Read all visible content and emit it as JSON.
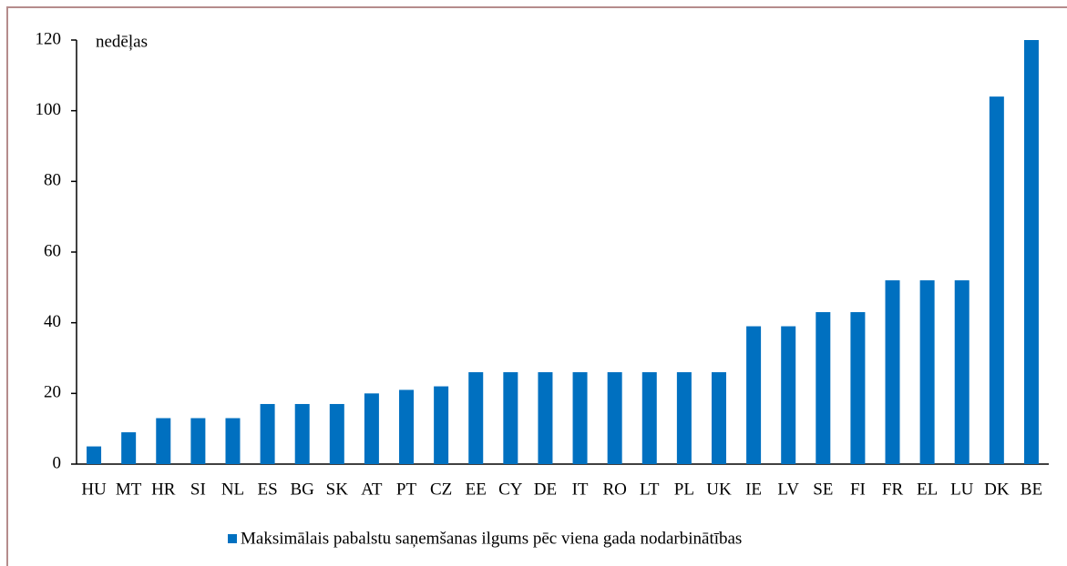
{
  "chart_data": {
    "type": "bar",
    "y_label": "nedēļas",
    "categories": [
      "HU",
      "MT",
      "HR",
      "SI",
      "NL",
      "ES",
      "BG",
      "SK",
      "AT",
      "PT",
      "CZ",
      "EE",
      "CY",
      "DE",
      "IT",
      "RO",
      "LT",
      "PL",
      "UK",
      "IE",
      "LV",
      "SE",
      "FI",
      "FR",
      "EL",
      "LU",
      "DK",
      "BE"
    ],
    "series": [
      {
        "name": "Maksimālais pabalstu saņemšanas ilgums pēc viena gada nodarbinātības",
        "color": "#0070c0",
        "values": [
          5,
          9,
          13,
          13,
          13,
          17,
          17,
          17,
          20,
          21,
          22,
          26,
          26,
          26,
          26,
          26,
          26,
          26,
          26,
          39,
          39,
          43,
          43,
          52,
          52,
          52,
          104,
          120
        ]
      }
    ],
    "ylim": [
      0,
      120
    ],
    "yticks": [
      0,
      20,
      40,
      60,
      80,
      100,
      120
    ],
    "grid": false,
    "legend": "bottom"
  }
}
